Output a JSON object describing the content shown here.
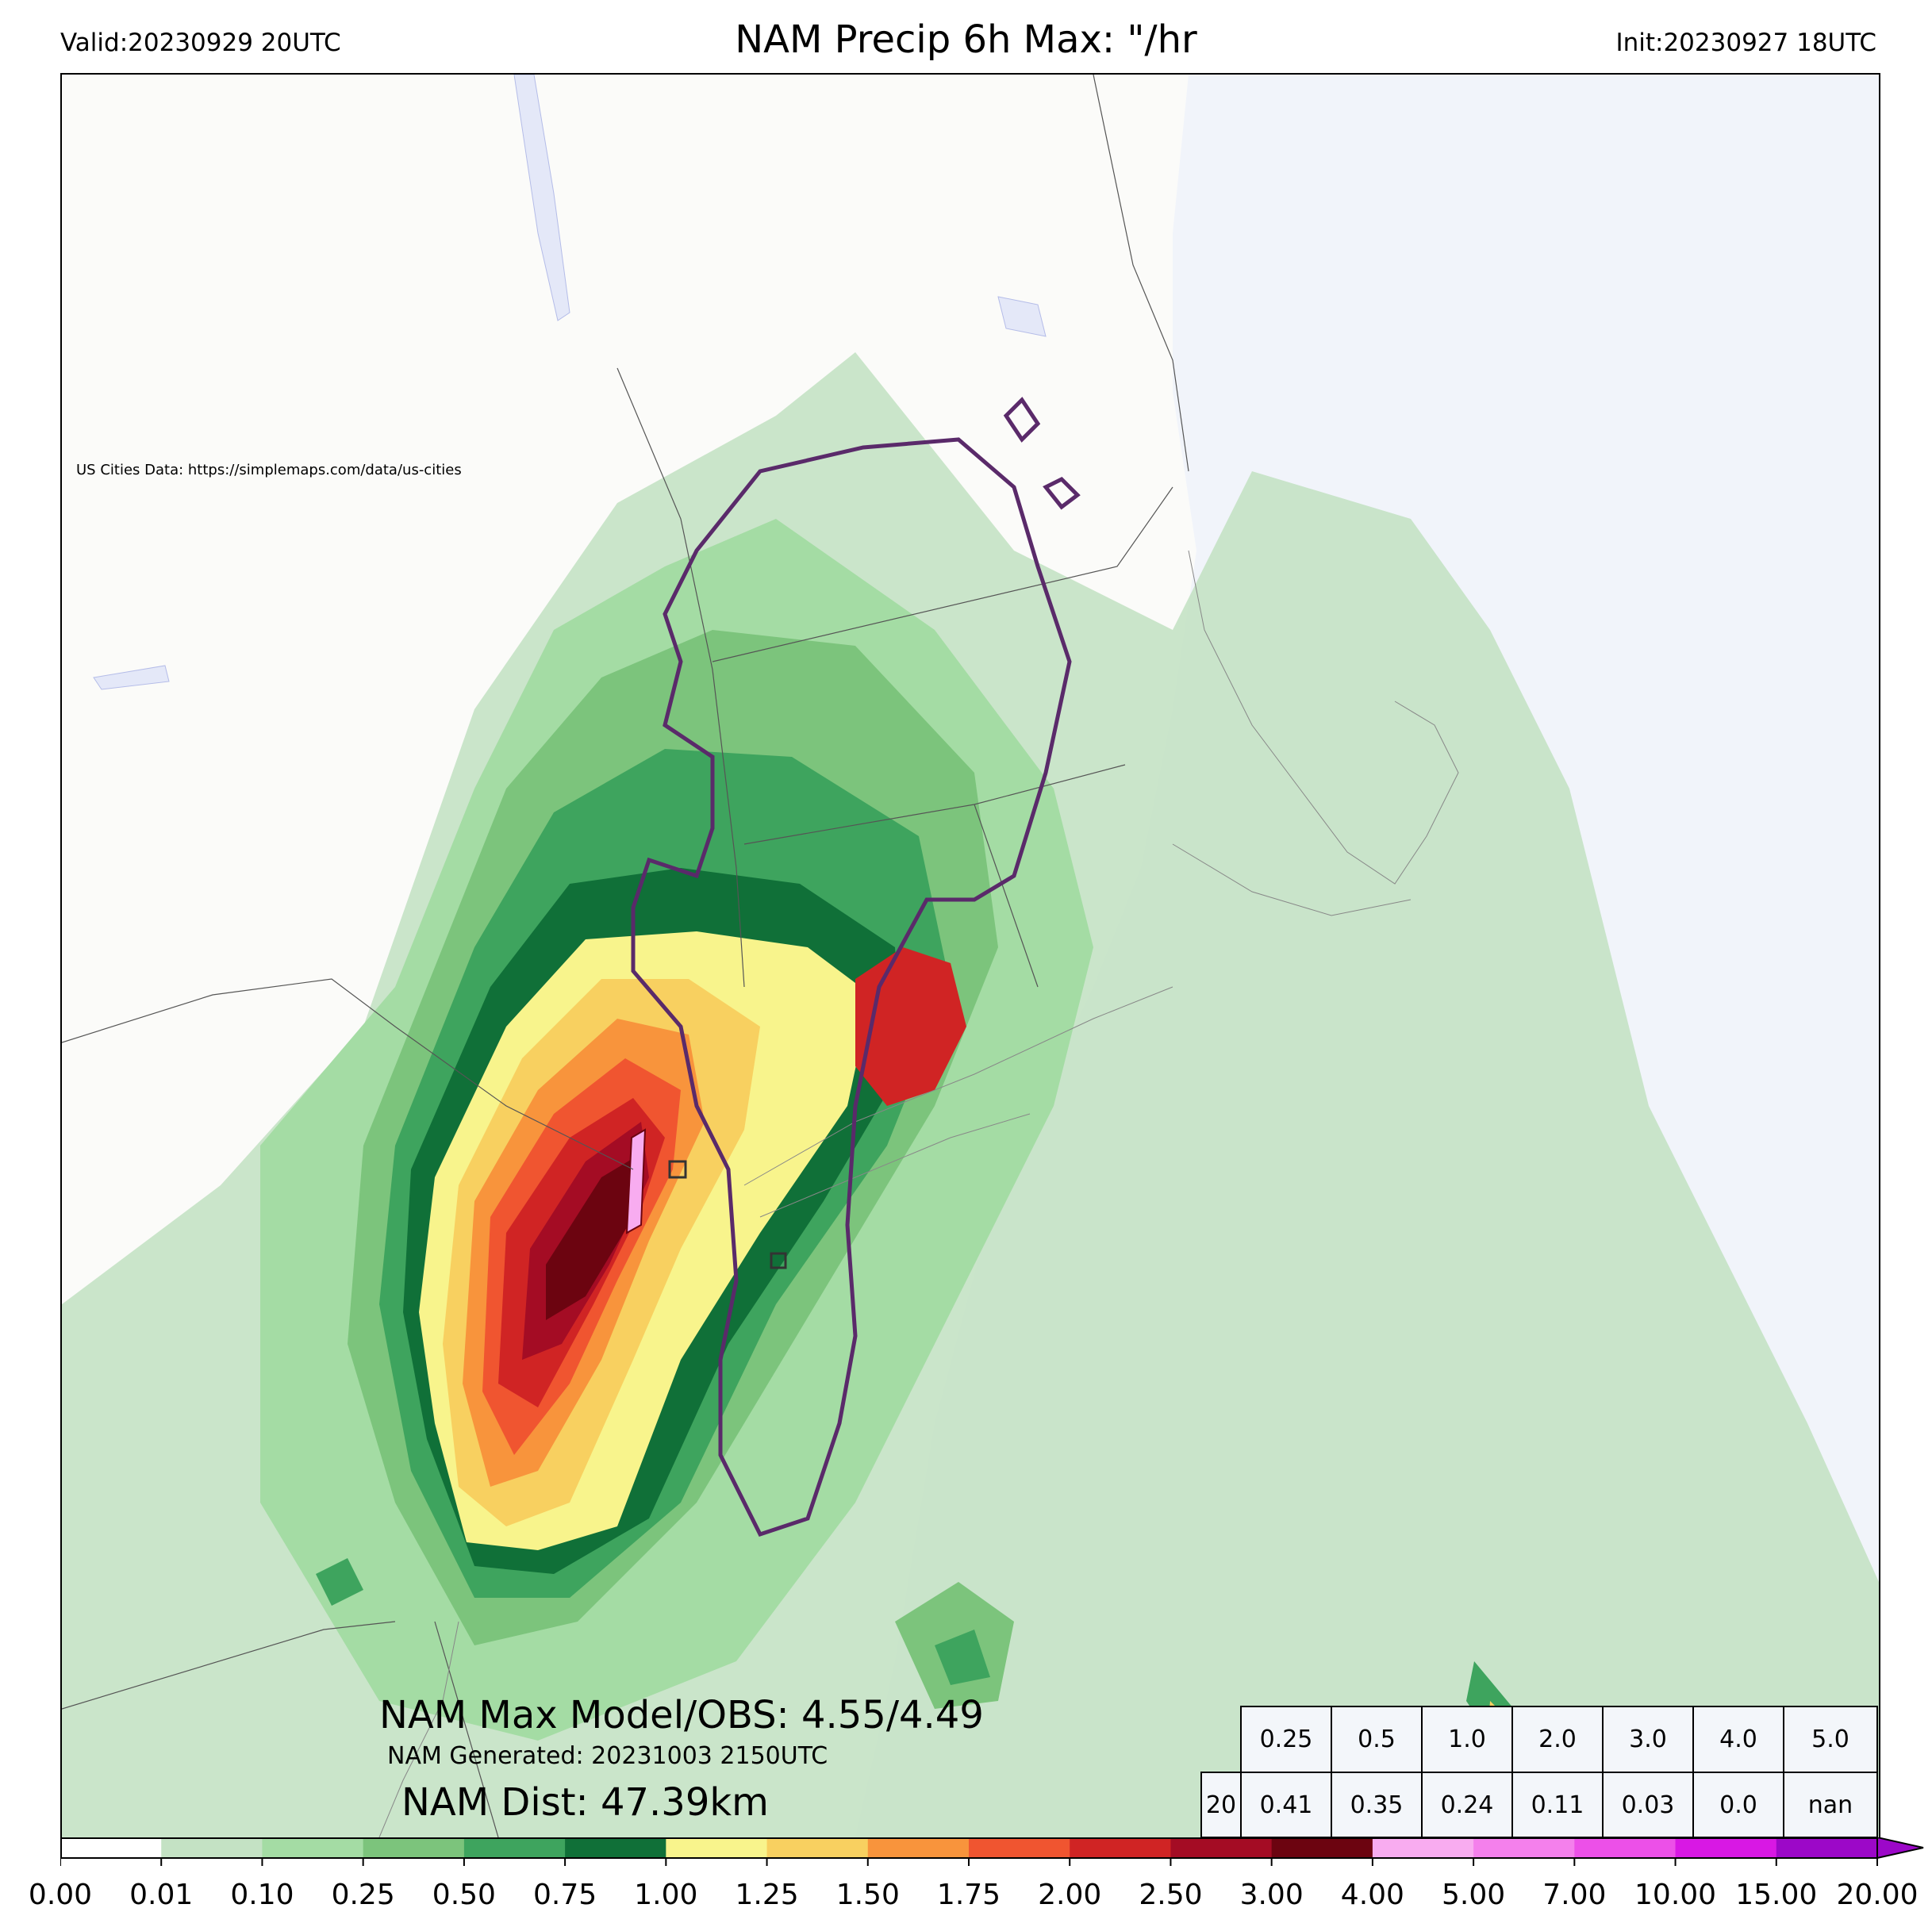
{
  "header": {
    "valid": "Valid:20230929 20UTC",
    "title": "NAM Precip 6h Max: \"/hr",
    "init": "Init:20230927 18UTC"
  },
  "map": {
    "credit": "US Cities Data: https://simplemaps.com/data/us-cities",
    "land_color": "#fbfbf9",
    "water_color": "#f1f4fa"
  },
  "annotations": {
    "max_model_obs": "NAM Max Model/OBS: 4.55/4.49",
    "generated": "NAM Generated: 20231003 2150UTC",
    "distance": "NAM Dist: 47.39km"
  },
  "stats_table": {
    "thresholds": [
      "0.25",
      "0.5",
      "1.0",
      "2.0",
      "3.0",
      "4.0",
      "5.0"
    ],
    "row_label": "20",
    "values": [
      "0.41",
      "0.35",
      "0.24",
      "0.11",
      "0.03",
      "0.0",
      "nan"
    ]
  },
  "colorbar": {
    "ticks": [
      "0.00",
      "0.01",
      "0.10",
      "0.25",
      "0.50",
      "0.75",
      "1.00",
      "1.25",
      "1.50",
      "1.75",
      "2.00",
      "2.50",
      "3.00",
      "4.00",
      "5.00",
      "7.00",
      "10.00",
      "15.00",
      "20.00"
    ],
    "colors": [
      "#ffffff",
      "#c4e2c4",
      "#a4dca4",
      "#7cc47c",
      "#3ea45e",
      "#107038",
      "#f8f48c",
      "#f8d060",
      "#f8943c",
      "#f05530",
      "#d02424",
      "#a40c24",
      "#6c0410",
      "#f8acf0",
      "#f480ec",
      "#ec50e8",
      "#d818e4",
      "#9c08c8"
    ]
  }
}
